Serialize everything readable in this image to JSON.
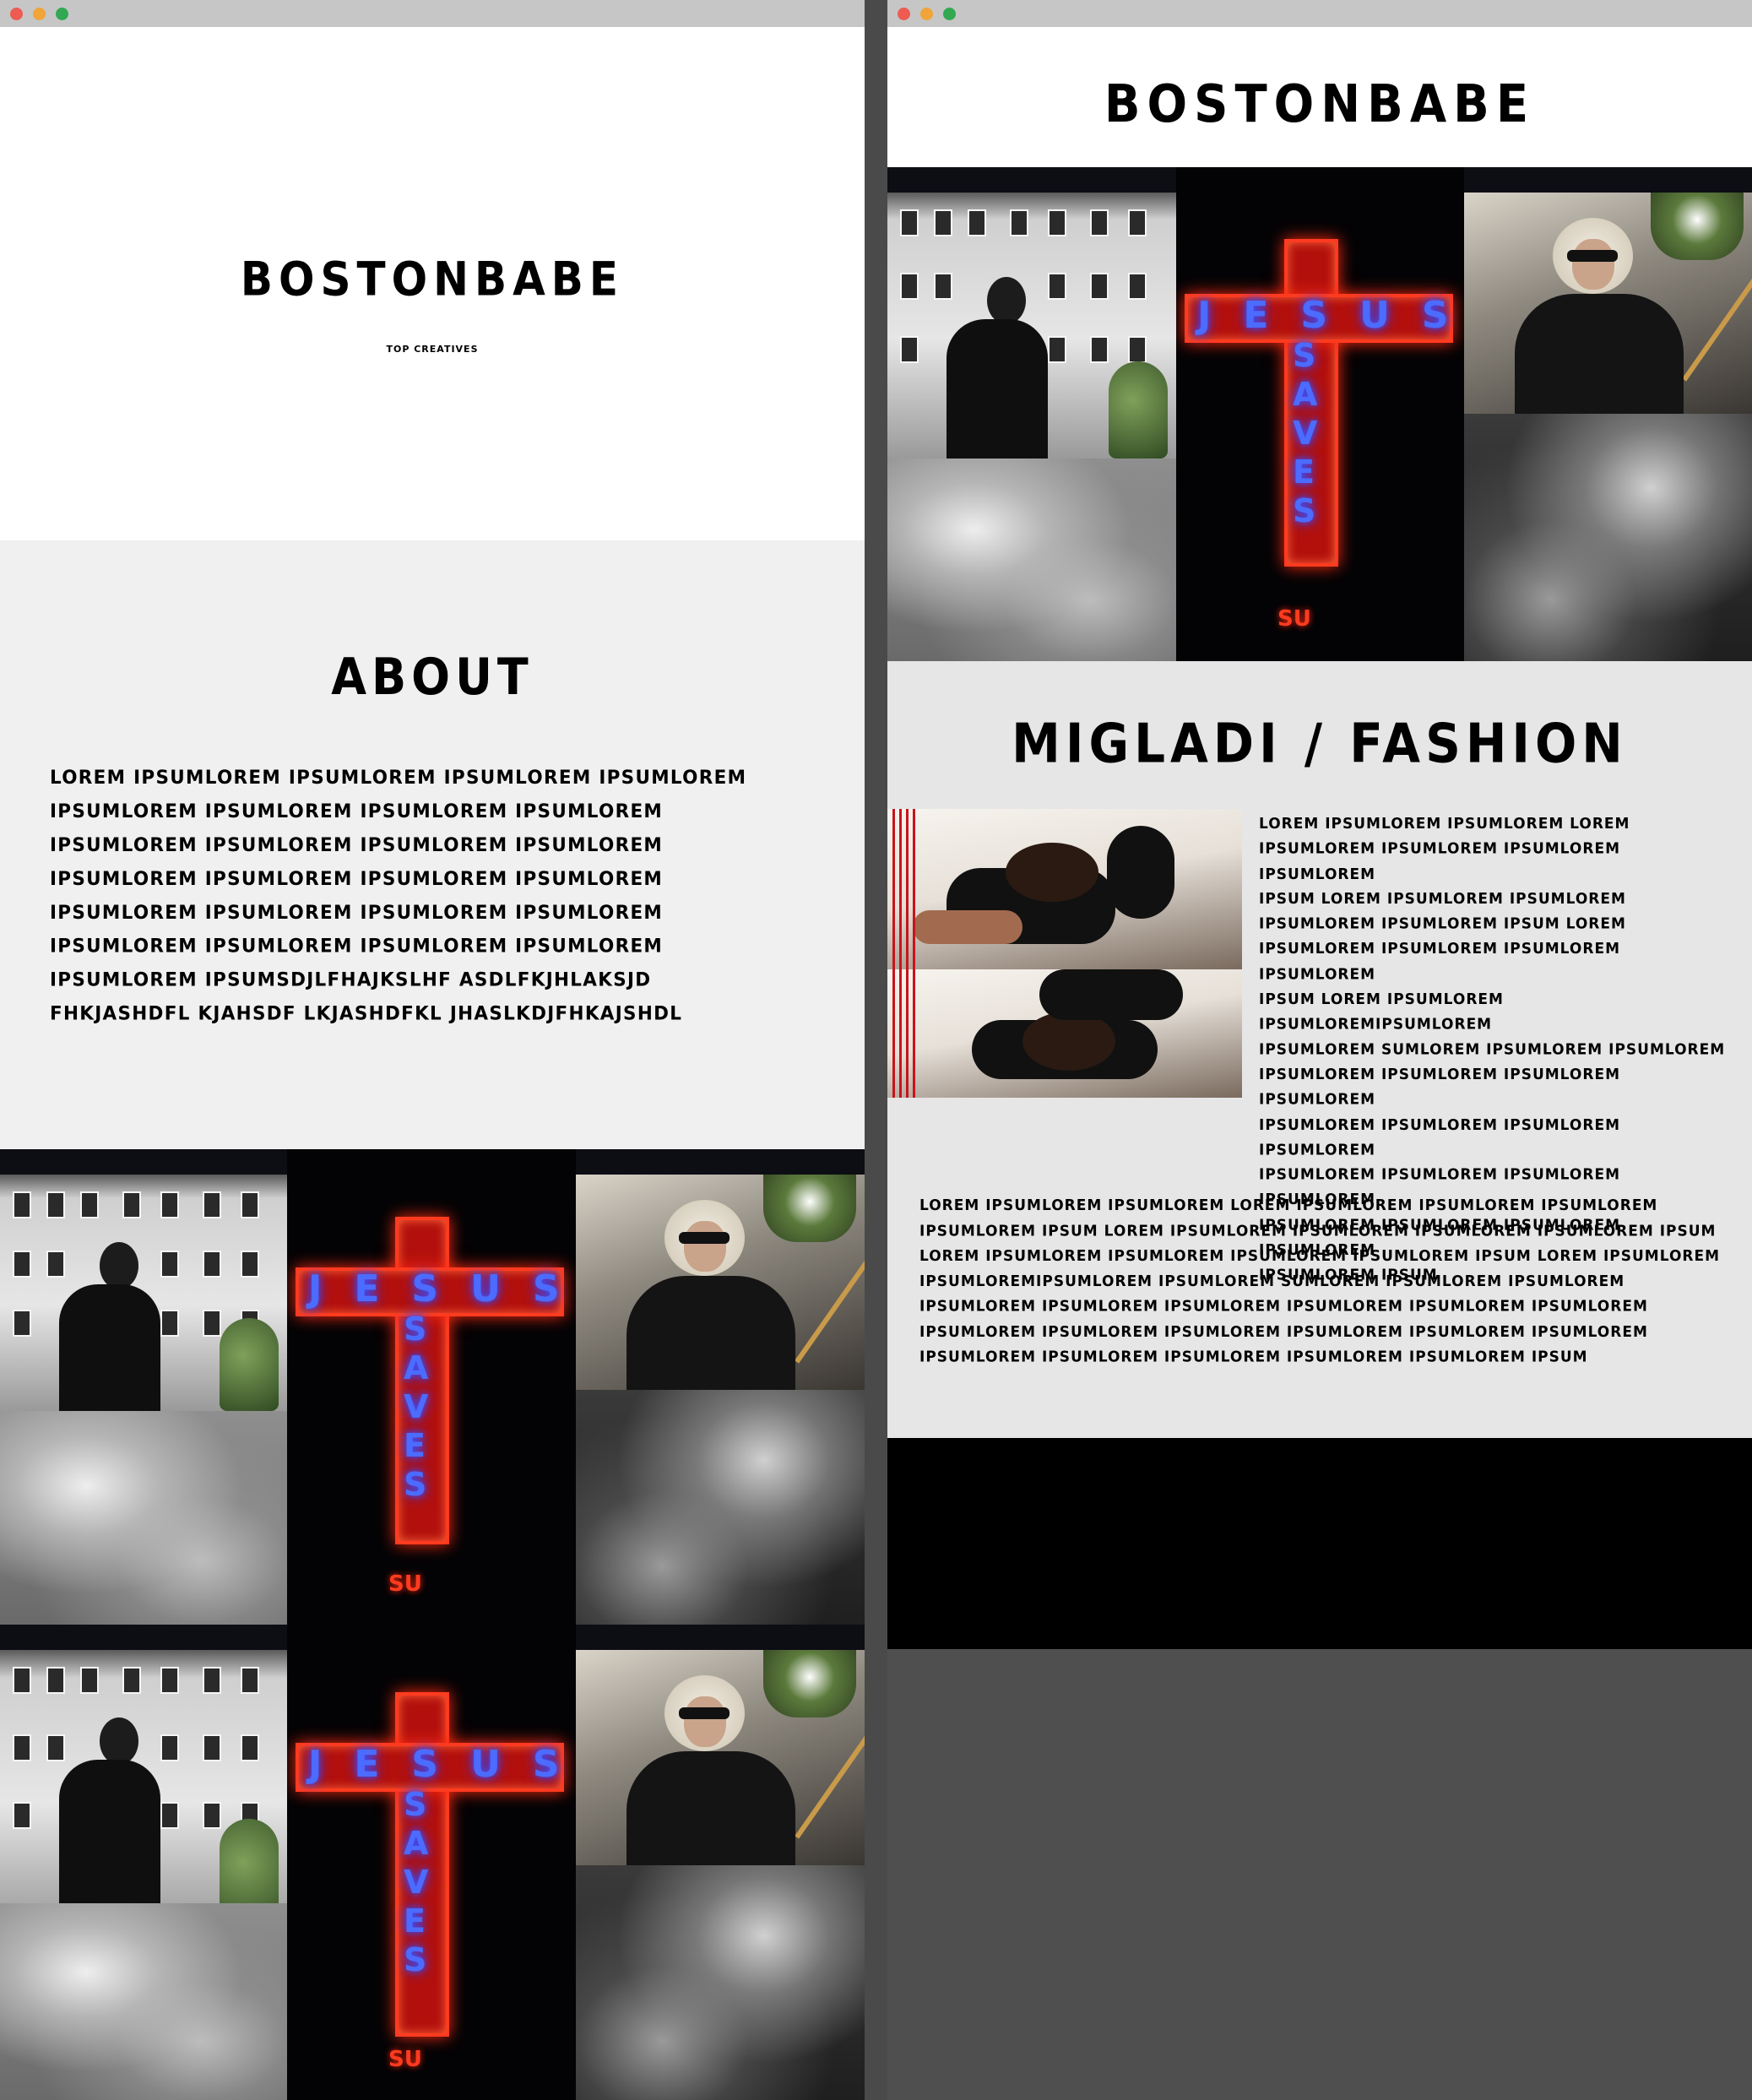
{
  "left_window": {
    "hero": {
      "brand": "BOSTONBABE",
      "tagline": "TOP CREATIVES"
    },
    "about": {
      "title": "ABOUT",
      "body": "LOREM IPSUMLOREM IPSUMLOREM IPSUMLOREM IPSUMLOREM\nIPSUMLOREM IPSUMLOREM IPSUMLOREM IPSUMLOREM\nIPSUMLOREM IPSUMLOREM IPSUMLOREM IPSUMLOREM\nIPSUMLOREM IPSUMLOREM IPSUMLOREM IPSUMLOREM\nIPSUMLOREM IPSUMLOREM IPSUMLOREM IPSUMLOREM\nIPSUMLOREM IPSUMLOREM IPSUMLOREM IPSUMLOREM\nIPSUMLOREM IPSUMSDJLFHAJKSLHF ASDLFKJHLAKSJD\nFHKJASHDFL KJAHSDF LKJASHDFKL JHASLKDJFHKAJSHDL"
    },
    "neon_sign": {
      "horizontal": "JESUS",
      "vertical": "SAVES",
      "bottom": "SU"
    }
  },
  "right_window": {
    "header": {
      "brand": "BOSTONBABE"
    },
    "section": {
      "title": "MIGLADI / FASHION",
      "body": "LOREM IPSUMLOREM IPSUMLOREM LOREM\nIPSUMLOREM IPSUMLOREM IPSUMLOREM IPSUMLOREM\nIPSUM LOREM IPSUMLOREM IPSUMLOREM\nIPSUMLOREM IPSUMLOREM IPSUM LOREM\nIPSUMLOREM IPSUMLOREM IPSUMLOREM IPSUMLOREM\nIPSUM LOREM IPSUMLOREM IPSUMLOREMIPSUMLOREM\nIPSUMLOREM SUMLOREM IPSUMLOREM IPSUMLOREM\nIPSUMLOREM IPSUMLOREM IPSUMLOREM IPSUMLOREM\nIPSUMLOREM IPSUMLOREM IPSUMLOREM IPSUMLOREM\nIPSUMLOREM IPSUMLOREM IPSUMLOREM IPSUMLOREM\nIPSUMLOREM IPSUMLOREM IPSUMLOREM IPSUMLOREM\nIPSUMLOREM IPSUM",
      "body2": "LOREM IPSUMLOREM IPSUMLOREM LOREM IPSUMLOREM IPSUMLOREM IPSUMLOREM\nIPSUMLOREM IPSUM LOREM IPSUMLOREM IPSUMLOREM IPSUMLOREM IPSUMLOREM IPSUM\nLOREM IPSUMLOREM IPSUMLOREM IPSUMLOREM IPSUMLOREM IPSUM LOREM IPSUMLOREM\nIPSUMLOREMIPSUMLOREM IPSUMLOREM SUMLOREM IPSUMLOREM IPSUMLOREM\nIPSUMLOREM IPSUMLOREM IPSUMLOREM IPSUMLOREM IPSUMLOREM IPSUMLOREM\nIPSUMLOREM IPSUMLOREM IPSUMLOREM IPSUMLOREM IPSUMLOREM IPSUMLOREM\nIPSUMLOREM IPSUMLOREM IPSUMLOREM IPSUMLOREM IPSUMLOREM IPSUM"
    },
    "neon_sign": {
      "horizontal": "JESUS",
      "vertical": "SAVES",
      "bottom": "SU"
    }
  },
  "colors": {
    "titlebar": "#c6c6c6",
    "close": "#ee5b52",
    "minimize": "#f0a43a",
    "zoom": "#32a853",
    "about_bg": "#f0f0f0",
    "section_bg": "#e6e6e6",
    "desktop": "#4f4f4f",
    "neon_red": "#ff3b1f",
    "neon_blue": "#4c6bff"
  },
  "icons": [
    "close-button-dot",
    "minimize-button-dot",
    "zoom-button-dot"
  ]
}
